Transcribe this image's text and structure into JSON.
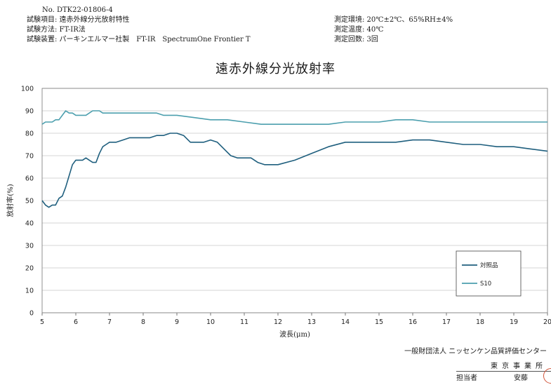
{
  "header": {
    "doc_no": "No. DTK22-01806-4",
    "left_lines": [
      "試験項目: 遠赤外線分光放射特性",
      "試験方法: FT-IR法",
      "試験装置: パーキンエルマー社製　FT-IR　SpectrumOne Frontier T"
    ],
    "right_lines": [
      "測定環境: 20℃±2℃、65%RH±4%",
      "測定温度: 40℃",
      "測定回数: 3回"
    ]
  },
  "footer": {
    "organization": "一般財団法人 ニッセンケン品質評価センター",
    "office": "東京事業所",
    "staff_label": "担当者",
    "staff_name": "安藤"
  },
  "colors": {
    "control": "#1f5f7e",
    "s10": "#4c9fae",
    "grid": "#c8c8c8",
    "seal": "#d2553a"
  },
  "chart_data": {
    "type": "line",
    "title": "遠赤外線分光放射率",
    "xlabel": "波長(μm)",
    "ylabel": "放射率(%)",
    "xlim": [
      5,
      20
    ],
    "ylim": [
      0,
      100
    ],
    "xticks": [
      5,
      6,
      7,
      8,
      9,
      10,
      11,
      12,
      13,
      14,
      15,
      16,
      17,
      18,
      19,
      20
    ],
    "yticks": [
      0,
      10,
      20,
      30,
      40,
      50,
      60,
      70,
      80,
      90,
      100
    ],
    "grid": true,
    "legend_position": "bottom-right",
    "series": [
      {
        "name": "対照品",
        "color": "#1f5f7e",
        "x": [
          5.0,
          5.1,
          5.2,
          5.3,
          5.4,
          5.5,
          5.6,
          5.7,
          5.8,
          5.9,
          6.0,
          6.1,
          6.2,
          6.3,
          6.4,
          6.5,
          6.6,
          6.7,
          6.8,
          6.9,
          7.0,
          7.2,
          7.4,
          7.6,
          7.8,
          8.0,
          8.2,
          8.4,
          8.6,
          8.8,
          9.0,
          9.2,
          9.4,
          9.6,
          9.8,
          10.0,
          10.2,
          10.4,
          10.6,
          10.8,
          11.0,
          11.2,
          11.4,
          11.6,
          11.8,
          12.0,
          12.5,
          13.0,
          13.5,
          14.0,
          14.5,
          15.0,
          15.5,
          16.0,
          16.5,
          17.0,
          17.5,
          18.0,
          18.5,
          19.0,
          19.5,
          20.0
        ],
        "y": [
          50,
          48,
          47,
          48,
          48,
          51,
          52,
          56,
          61,
          66,
          68,
          68,
          68,
          69,
          68,
          67,
          67,
          71,
          74,
          75,
          76,
          76,
          77,
          78,
          78,
          78,
          78,
          79,
          79,
          80,
          80,
          79,
          76,
          76,
          76,
          77,
          76,
          73,
          70,
          69,
          69,
          69,
          67,
          66,
          66,
          66,
          68,
          71,
          74,
          76,
          76,
          76,
          76,
          77,
          77,
          76,
          75,
          75,
          74,
          74,
          73,
          72
        ]
      },
      {
        "name": "S10",
        "color": "#4c9fae",
        "x": [
          5.0,
          5.1,
          5.2,
          5.3,
          5.4,
          5.5,
          5.6,
          5.7,
          5.8,
          5.9,
          6.0,
          6.1,
          6.2,
          6.3,
          6.4,
          6.5,
          6.6,
          6.7,
          6.8,
          6.9,
          7.0,
          7.2,
          7.4,
          7.6,
          7.8,
          8.0,
          8.2,
          8.4,
          8.6,
          8.8,
          9.0,
          9.5,
          10.0,
          10.5,
          11.0,
          11.5,
          12.0,
          12.5,
          13.0,
          13.5,
          14.0,
          14.5,
          15.0,
          15.5,
          16.0,
          16.5,
          17.0,
          17.5,
          18.0,
          18.5,
          19.0,
          19.5,
          20.0
        ],
        "y": [
          84,
          85,
          85,
          85,
          86,
          86,
          88,
          90,
          89,
          89,
          88,
          88,
          88,
          88,
          89,
          90,
          90,
          90,
          89,
          89,
          89,
          89,
          89,
          89,
          89,
          89,
          89,
          89,
          88,
          88,
          88,
          87,
          86,
          86,
          85,
          84,
          84,
          84,
          84,
          84,
          85,
          85,
          85,
          86,
          86,
          85,
          85,
          85,
          85,
          85,
          85,
          85,
          85
        ]
      }
    ]
  }
}
